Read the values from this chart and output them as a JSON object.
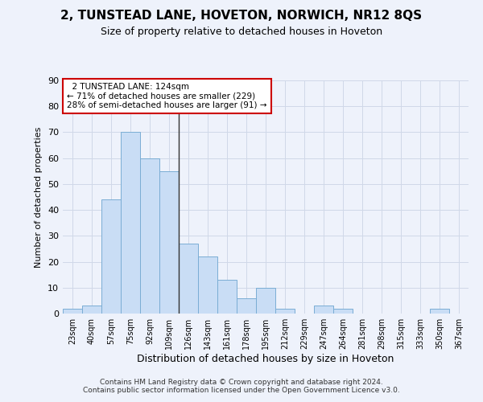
{
  "title1": "2, TUNSTEAD LANE, HOVETON, NORWICH, NR12 8QS",
  "title2": "Size of property relative to detached houses in Hoveton",
  "xlabel": "Distribution of detached houses by size in Hoveton",
  "ylabel": "Number of detached properties",
  "footer1": "Contains HM Land Registry data © Crown copyright and database right 2024.",
  "footer2": "Contains public sector information licensed under the Open Government Licence v3.0.",
  "categories": [
    "23sqm",
    "40sqm",
    "57sqm",
    "75sqm",
    "92sqm",
    "109sqm",
    "126sqm",
    "143sqm",
    "161sqm",
    "178sqm",
    "195sqm",
    "212sqm",
    "229sqm",
    "247sqm",
    "264sqm",
    "281sqm",
    "298sqm",
    "315sqm",
    "333sqm",
    "350sqm",
    "367sqm"
  ],
  "values": [
    2,
    3,
    44,
    70,
    60,
    55,
    27,
    22,
    13,
    6,
    10,
    2,
    0,
    3,
    2,
    0,
    0,
    0,
    0,
    2,
    0
  ],
  "bar_color_normal": "#c9ddf5",
  "bar_color_edge": "#7aadd4",
  "highlight_index": 5,
  "highlight_line_color": "#333333",
  "ylim": [
    0,
    90
  ],
  "yticks": [
    0,
    10,
    20,
    30,
    40,
    50,
    60,
    70,
    80,
    90
  ],
  "annotation_text": "  2 TUNSTEAD LANE: 124sqm\n← 71% of detached houses are smaller (229)\n28% of semi-detached houses are larger (91) →",
  "annotation_box_color": "#ffffff",
  "annotation_box_edgecolor": "#cc0000",
  "grid_color": "#d0d8e8",
  "background_color": "#eef2fb",
  "title_fontsize": 11,
  "subtitle_fontsize": 9
}
